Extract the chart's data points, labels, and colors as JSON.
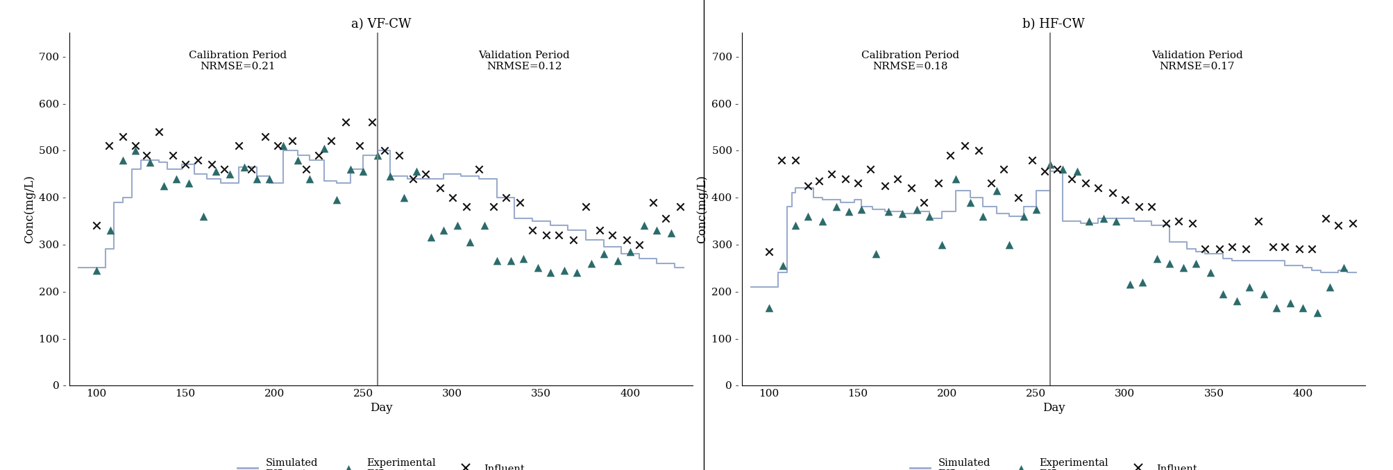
{
  "title_a": "a) VF-CW",
  "title_b": "b) HF-CW",
  "xlabel": "Day",
  "ylabel": "Conc(mg/L)",
  "ylim": [
    0,
    750
  ],
  "yticks": [
    0,
    100,
    200,
    300,
    400,
    500,
    600,
    700
  ],
  "xlim": [
    85,
    435
  ],
  "xticks": [
    100,
    150,
    200,
    250,
    300,
    350,
    400
  ],
  "separation_day": 258,
  "calib_label_a": "Calibration Period\nNRMSE=0.21",
  "valid_label_a": "Validation Period\nNRMSE=0.12",
  "calib_label_b": "Calibration Period\nNRMSE=0.18",
  "valid_label_b": "Validation Period\nNRMSE=0.17",
  "sim_color": "#9aabcc",
  "triangle_color": "#2d6b6b",
  "cross_color": "#111111",
  "vf_influent_x": [
    100,
    107,
    115,
    122,
    128,
    135,
    143,
    150,
    157,
    165,
    172,
    180,
    187,
    195,
    202,
    210,
    218,
    225,
    232,
    240,
    248,
    255,
    262,
    270,
    278,
    285,
    293,
    300,
    308,
    315,
    323,
    330,
    338,
    345,
    353,
    360,
    368,
    375,
    383,
    390,
    398,
    405,
    413,
    420,
    428
  ],
  "vf_influent_y": [
    340,
    510,
    530,
    510,
    490,
    540,
    490,
    470,
    480,
    470,
    460,
    510,
    460,
    530,
    510,
    520,
    460,
    490,
    520,
    560,
    510,
    560,
    500,
    490,
    440,
    450,
    420,
    400,
    380,
    460,
    380,
    400,
    390,
    330,
    320,
    320,
    310,
    380,
    330,
    320,
    310,
    300,
    390,
    355,
    380
  ],
  "vf_effluent_exp_x": [
    100,
    108,
    115,
    122,
    130,
    138,
    145,
    152,
    160,
    167,
    175,
    183,
    190,
    197,
    205,
    213,
    220,
    228,
    235,
    243,
    250,
    258,
    265,
    273,
    280,
    288,
    295,
    303,
    310,
    318,
    325,
    333,
    340,
    348,
    355,
    363,
    370,
    378,
    385,
    393,
    400,
    408,
    415,
    423
  ],
  "vf_effluent_exp_y": [
    245,
    330,
    480,
    500,
    475,
    425,
    440,
    430,
    360,
    455,
    450,
    465,
    440,
    440,
    510,
    480,
    440,
    505,
    395,
    460,
    455,
    490,
    445,
    400,
    455,
    315,
    330,
    340,
    305,
    340,
    265,
    265,
    270,
    250,
    240,
    245,
    240,
    260,
    280,
    265,
    285,
    340,
    330,
    325
  ],
  "vf_sim_x": [
    90,
    100,
    105,
    110,
    115,
    120,
    125,
    130,
    135,
    140,
    145,
    148,
    152,
    155,
    158,
    162,
    165,
    170,
    175,
    180,
    185,
    190,
    193,
    197,
    200,
    205,
    210,
    213,
    217,
    220,
    225,
    228,
    232,
    235,
    240,
    243,
    247,
    250,
    255,
    258,
    262,
    265,
    270,
    275,
    280,
    285,
    290,
    295,
    300,
    305,
    310,
    315,
    320,
    325,
    330,
    335,
    340,
    345,
    350,
    355,
    360,
    365,
    370,
    375,
    380,
    385,
    390,
    395,
    400,
    405,
    410,
    415,
    420,
    425,
    430
  ],
  "vf_sim_y": [
    250,
    250,
    290,
    390,
    400,
    460,
    480,
    480,
    475,
    460,
    460,
    470,
    470,
    450,
    450,
    440,
    440,
    430,
    430,
    465,
    465,
    445,
    445,
    430,
    430,
    500,
    500,
    490,
    490,
    480,
    480,
    435,
    435,
    430,
    430,
    460,
    460,
    490,
    490,
    500,
    500,
    445,
    445,
    440,
    440,
    440,
    440,
    450,
    450,
    445,
    445,
    440,
    440,
    400,
    400,
    355,
    355,
    350,
    350,
    340,
    340,
    330,
    330,
    310,
    310,
    295,
    295,
    280,
    280,
    270,
    270,
    260,
    260,
    250,
    250
  ],
  "hf_influent_x": [
    100,
    107,
    115,
    122,
    128,
    135,
    143,
    150,
    157,
    165,
    172,
    180,
    187,
    195,
    202,
    210,
    218,
    225,
    232,
    240,
    248,
    255,
    262,
    270,
    278,
    285,
    293,
    300,
    308,
    315,
    323,
    330,
    338,
    345,
    353,
    360,
    368,
    375,
    383,
    390,
    398,
    405,
    413,
    420,
    428
  ],
  "hf_influent_y": [
    285,
    480,
    480,
    425,
    435,
    450,
    440,
    430,
    460,
    425,
    440,
    420,
    390,
    430,
    490,
    510,
    500,
    430,
    460,
    400,
    480,
    455,
    460,
    440,
    430,
    420,
    410,
    395,
    380,
    380,
    345,
    350,
    345,
    290,
    290,
    295,
    290,
    350,
    295,
    295,
    290,
    290,
    355,
    340,
    345
  ],
  "hf_effluent_exp_x": [
    100,
    108,
    115,
    122,
    130,
    138,
    145,
    152,
    160,
    167,
    175,
    183,
    190,
    197,
    205,
    213,
    220,
    228,
    235,
    243,
    250,
    258,
    265,
    273,
    280,
    288,
    295,
    303,
    310,
    318,
    325,
    333,
    340,
    348,
    355,
    363,
    370,
    378,
    385,
    393,
    400,
    408,
    415,
    423
  ],
  "hf_effluent_exp_y": [
    165,
    255,
    340,
    360,
    350,
    380,
    370,
    375,
    280,
    370,
    365,
    375,
    360,
    300,
    440,
    390,
    360,
    415,
    300,
    360,
    375,
    470,
    460,
    455,
    350,
    355,
    350,
    215,
    220,
    270,
    260,
    250,
    260,
    240,
    195,
    180,
    210,
    195,
    165,
    175,
    165,
    155,
    210,
    250
  ],
  "hf_sim_x": [
    90,
    100,
    105,
    110,
    113,
    115,
    120,
    125,
    130,
    135,
    140,
    145,
    148,
    152,
    155,
    158,
    162,
    165,
    170,
    175,
    180,
    185,
    190,
    193,
    197,
    200,
    205,
    210,
    213,
    217,
    220,
    225,
    228,
    232,
    235,
    240,
    243,
    247,
    250,
    255,
    258,
    262,
    265,
    270,
    275,
    280,
    285,
    290,
    295,
    300,
    305,
    310,
    315,
    320,
    325,
    330,
    335,
    340,
    345,
    350,
    355,
    360,
    365,
    370,
    375,
    380,
    385,
    390,
    395,
    400,
    405,
    410,
    415,
    420,
    425,
    430
  ],
  "hf_sim_y": [
    210,
    210,
    240,
    380,
    410,
    420,
    420,
    400,
    395,
    395,
    390,
    390,
    395,
    380,
    380,
    375,
    375,
    370,
    370,
    365,
    365,
    370,
    355,
    355,
    370,
    370,
    415,
    415,
    400,
    400,
    380,
    380,
    365,
    365,
    360,
    360,
    380,
    380,
    415,
    415,
    455,
    455,
    350,
    350,
    345,
    345,
    355,
    355,
    355,
    355,
    350,
    350,
    340,
    340,
    305,
    305,
    290,
    285,
    280,
    280,
    270,
    265,
    265,
    265,
    265,
    265,
    265,
    255,
    255,
    250,
    245,
    240,
    240,
    245,
    240,
    240
  ]
}
